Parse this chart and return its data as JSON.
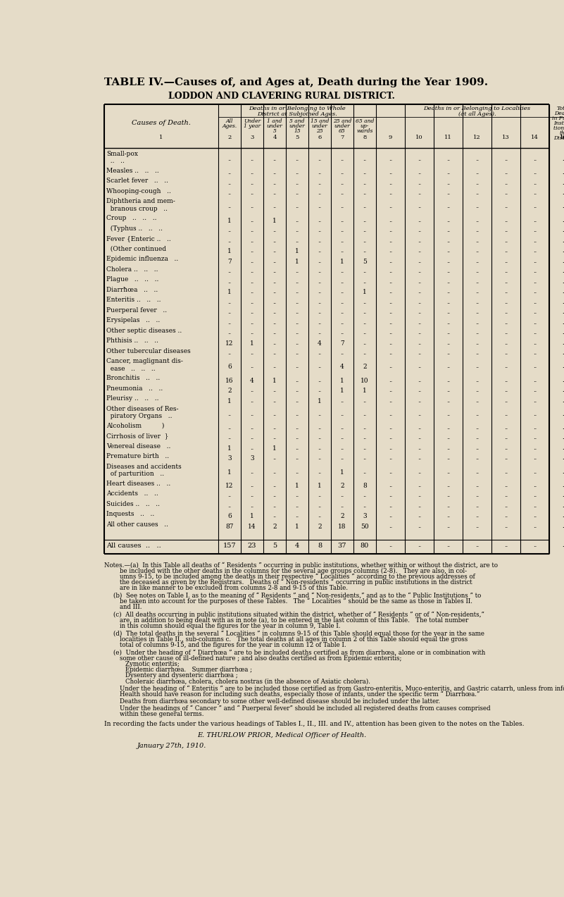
{
  "title": "TABLE IV.—Causes of, and Ages at, Death during the Year 1909.",
  "subtitle": "LODDON AND CLAVERING RURAL DISTRICT.",
  "bg_color": "#e5dcc8",
  "rows": [
    {
      "cause": [
        "Small-pox",
        "  ..   .."
      ],
      "vals": [
        "",
        "",
        "",
        "",
        "",
        "",
        ""
      ]
    },
    {
      "cause": [
        "Measles ..   ..   .."
      ],
      "vals": [
        "",
        "",
        "",
        "",
        "",
        "",
        ""
      ]
    },
    {
      "cause": [
        "Scarlet fever   ..   .."
      ],
      "vals": [
        "",
        "",
        "",
        "",
        "",
        "",
        ""
      ]
    },
    {
      "cause": [
        "Whooping-cough   .."
      ],
      "vals": [
        "",
        "",
        "",
        "",
        "",
        "",
        ""
      ]
    },
    {
      "cause": [
        "Diphtheria and mem-",
        "  branous croup   .."
      ],
      "vals": [
        "",
        "",
        "",
        "",
        "",
        "",
        ""
      ]
    },
    {
      "cause": [
        "Croup   ..   ..   .."
      ],
      "vals": [
        "1",
        "",
        "1",
        "",
        "",
        "",
        ""
      ]
    },
    {
      "cause": [
        "  (Typhus ..   ..   .."
      ],
      "vals": [
        "",
        "",
        "",
        "",
        "",
        "",
        ""
      ]
    },
    {
      "cause": [
        "Fever {Enteric ..   .."
      ],
      "vals": [
        "",
        "",
        "",
        "",
        "",
        "",
        ""
      ]
    },
    {
      "cause": [
        "  (Other continued"
      ],
      "vals": [
        "1",
        "",
        "",
        "1",
        "",
        "",
        ""
      ]
    },
    {
      "cause": [
        "Epidemic influenza   .."
      ],
      "vals": [
        "7",
        "",
        "",
        "1",
        "",
        "1",
        "5"
      ]
    },
    {
      "cause": [
        "Cholera ..   ..   .."
      ],
      "vals": [
        "",
        "",
        "",
        "",
        "",
        "",
        ""
      ]
    },
    {
      "cause": [
        "Plague   ..   ..   .."
      ],
      "vals": [
        "",
        "",
        "",
        "",
        "",
        "",
        ""
      ]
    },
    {
      "cause": [
        "Diarrħœa   ..   .."
      ],
      "vals": [
        "1",
        "",
        "",
        "",
        "",
        "",
        "1"
      ]
    },
    {
      "cause": [
        "Enteritis ..   ..   .."
      ],
      "vals": [
        "",
        "",
        "",
        "",
        "",
        "",
        ""
      ]
    },
    {
      "cause": [
        "Puerperal fever   .."
      ],
      "vals": [
        "",
        "",
        "",
        "",
        "",
        "",
        ""
      ]
    },
    {
      "cause": [
        "Erysipelas   ..   .."
      ],
      "vals": [
        "",
        "",
        "",
        "",
        "",
        "",
        ""
      ]
    },
    {
      "cause": [
        "Other septic diseases .."
      ],
      "vals": [
        "",
        "",
        "",
        "",
        "",
        "",
        ""
      ]
    },
    {
      "cause": [
        "Phthisis ..   ..   .."
      ],
      "vals": [
        "12",
        "1",
        "",
        "",
        "4",
        "7",
        ""
      ]
    },
    {
      "cause": [
        "Other tubercular diseases"
      ],
      "vals": [
        "",
        "",
        "",
        "",
        "",
        "",
        ""
      ]
    },
    {
      "cause": [
        "Cancer, maglignant dis-",
        "  ease   ..   ..   .."
      ],
      "vals": [
        "6",
        "",
        "",
        "",
        "",
        "4",
        "2"
      ]
    },
    {
      "cause": [
        "Bronchitis   ..   .."
      ],
      "vals": [
        "16",
        "4",
        "1",
        "",
        "",
        "1",
        "10"
      ]
    },
    {
      "cause": [
        "Pneumonia   ..   .."
      ],
      "vals": [
        "2",
        "",
        "",
        "",
        "",
        "1",
        "1"
      ]
    },
    {
      "cause": [
        "Pleurisy ..   ..   .."
      ],
      "vals": [
        "1",
        "",
        "",
        "",
        "1",
        "",
        ""
      ]
    },
    {
      "cause": [
        "Other diseases of Res-",
        "  piratory Organs   .."
      ],
      "vals": [
        "",
        "",
        "",
        "",
        "",
        "",
        ""
      ]
    },
    {
      "cause": [
        "Alcoholism          )"
      ],
      "vals": [
        "",
        "",
        "",
        "",
        "",
        "",
        ""
      ]
    },
    {
      "cause": [
        "Cirrhosis of liver  }"
      ],
      "vals": [
        "",
        "",
        "",
        "",
        "",
        "",
        ""
      ]
    },
    {
      "cause": [
        "Venereal disease   .."
      ],
      "vals": [
        "1",
        "",
        "1",
        "",
        "",
        "",
        ""
      ]
    },
    {
      "cause": [
        "Premature birth   .."
      ],
      "vals": [
        "3",
        "3",
        "",
        "",
        "",
        "",
        ""
      ]
    },
    {
      "cause": [
        "Diseases and accidents",
        "  of parturition   .."
      ],
      "vals": [
        "1",
        "",
        "",
        "",
        "",
        "1",
        ""
      ]
    },
    {
      "cause": [
        "Heart diseases ..   .."
      ],
      "vals": [
        "12",
        "",
        "",
        "1",
        "1",
        "2",
        "8"
      ]
    },
    {
      "cause": [
        "Accidents   ..   .."
      ],
      "vals": [
        "",
        "",
        "",
        "",
        "",
        "",
        ""
      ]
    },
    {
      "cause": [
        "Suicides ..   ..   .."
      ],
      "vals": [
        "",
        "",
        "",
        "",
        "",
        "",
        ""
      ]
    },
    {
      "cause": [
        "Inquests   ..   .."
      ],
      "vals": [
        "6",
        "1",
        "",
        "",
        "",
        "2",
        "3"
      ]
    },
    {
      "cause": [
        "All other causes   .."
      ],
      "vals": [
        "87",
        "14",
        "2",
        "1",
        "2",
        "18",
        "50"
      ]
    }
  ],
  "total_vals": [
    "157",
    "23",
    "5",
    "4",
    "8",
    "37",
    "80"
  ]
}
